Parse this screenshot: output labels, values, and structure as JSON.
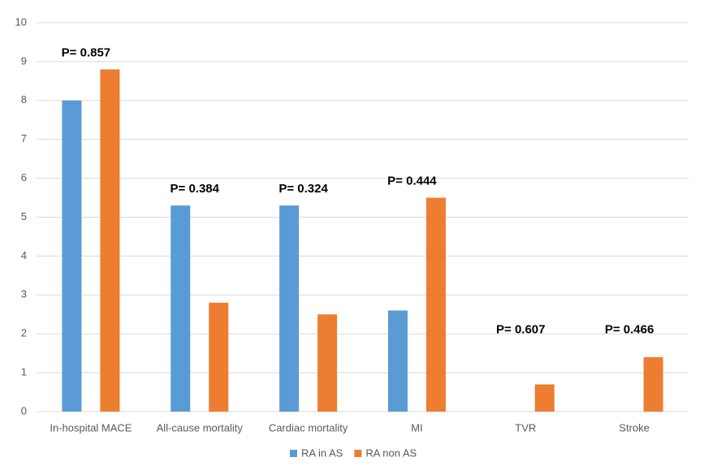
{
  "chart_data": {
    "type": "bar",
    "categories": [
      "In-hospital MACE",
      "All-cause mortality",
      "Cardiac mortality",
      "MI",
      "TVR",
      "Stroke"
    ],
    "series": [
      {
        "name": "RA in AS",
        "color": "#5b9bd5",
        "values": [
          8.0,
          5.3,
          5.3,
          2.6,
          0,
          0
        ]
      },
      {
        "name": "RA non AS",
        "color": "#ed7d31",
        "values": [
          8.8,
          2.8,
          2.5,
          5.5,
          0.7,
          1.4
        ]
      }
    ],
    "annotations": [
      "P= 0.857",
      "P= 0.384",
      "P= 0.324",
      "P= 0.444",
      "P= 0.607",
      "P= 0.466"
    ],
    "ylim": [
      0,
      10
    ],
    "yticks": [
      0,
      1,
      2,
      3,
      4,
      5,
      6,
      7,
      8,
      9,
      10
    ],
    "grid": true,
    "legend": "bottom"
  }
}
